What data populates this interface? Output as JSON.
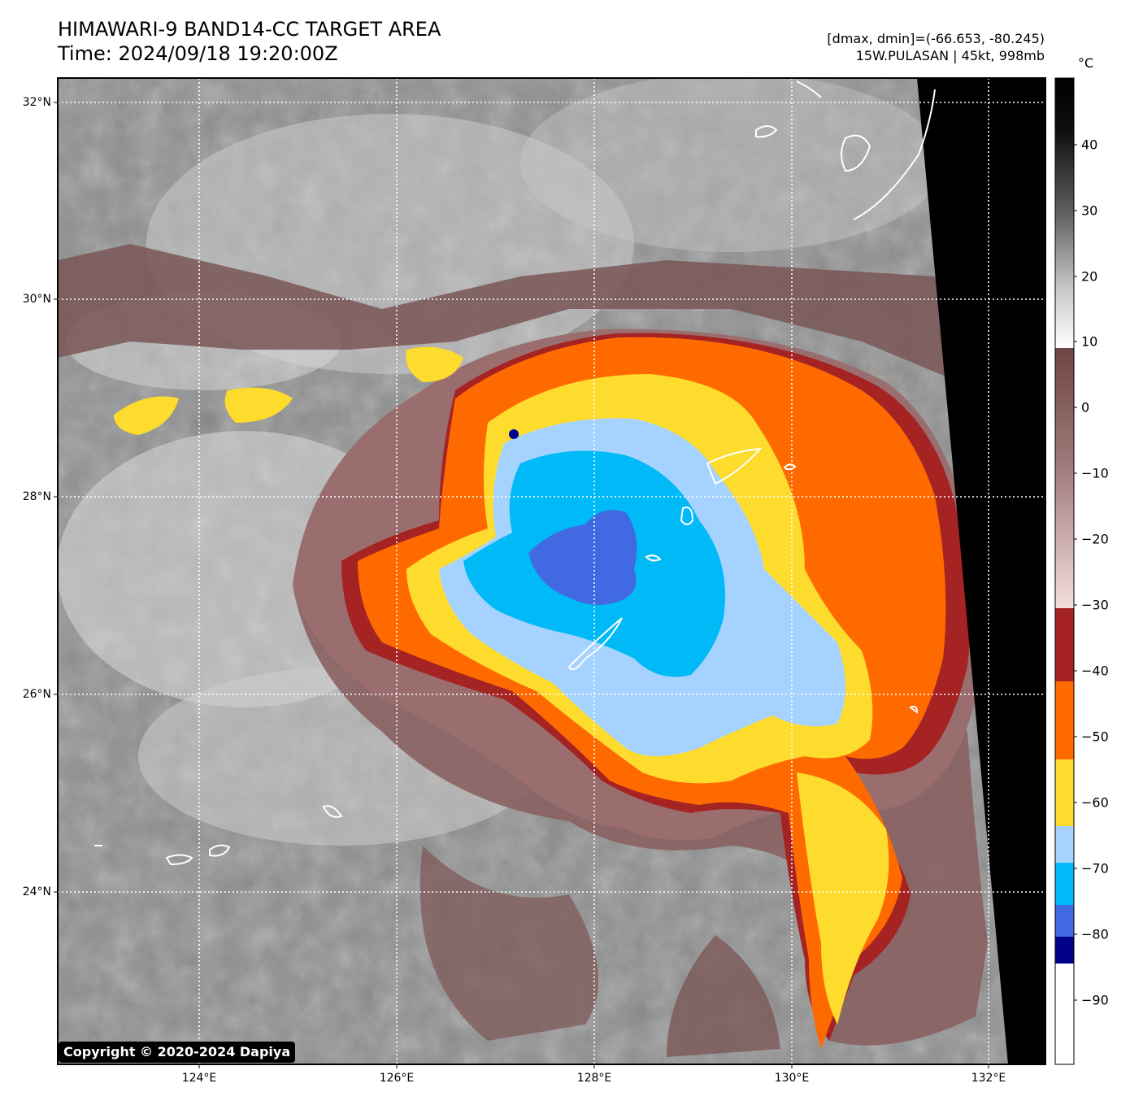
{
  "header": {
    "title_line1": "HIMAWARI-9 BAND14-CC TARGET AREA",
    "title_line2": "Time: 2024/09/18 19:20:00Z",
    "range_text": "[dmax, dmin]=(-66.653, -80.245)",
    "storm_text": "15W.PULASAN | 45kt, 998mb"
  },
  "map": {
    "lat_labels": [
      "32°N",
      "30°N",
      "28°N",
      "26°N",
      "24°N"
    ],
    "lon_labels": [
      "124°E",
      "126°E",
      "128°E",
      "130°E",
      "132°E"
    ],
    "colors": {
      "ocean_gray": "#8f8f8f",
      "cloud_white": "#e6e6e6",
      "warm_brown": "#7a4f4f",
      "dark_red": "#a52323",
      "orange": "#ff6a00",
      "yellow": "#fddc2e",
      "light_blue": "#a6d2ff",
      "cyan": "#00b9f7",
      "royal_blue": "#4169e1",
      "navy": "#00008b",
      "space_black": "#000000"
    }
  },
  "colorbar": {
    "unit": "°C",
    "tick_labels": [
      "40",
      "30",
      "20",
      "10",
      "0",
      "−10",
      "−20",
      "−30",
      "−40",
      "−50",
      "−60",
      "−70",
      "−80",
      "−90"
    ]
  },
  "copyright": "Copyright © 2020-2024 Dapiya"
}
